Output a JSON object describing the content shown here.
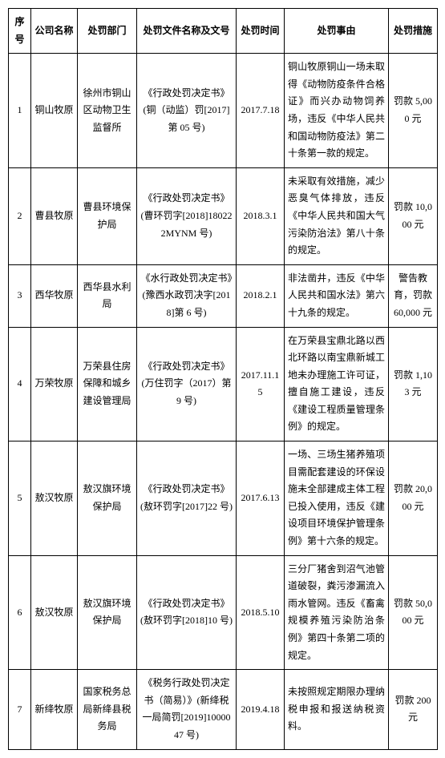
{
  "headers": {
    "seq": "序号",
    "company": "公司名称",
    "dept": "处罚部门",
    "doc": "处罚文件名称及文号",
    "time": "处罚时间",
    "cause": "处罚事由",
    "measure": "处罚措施"
  },
  "rows": [
    {
      "seq": "1",
      "company": "铜山牧原",
      "dept": "徐州市铜山区动物卫生监督所",
      "doc": "《行政处罚决定书》(铜（动监）罚[2017]第 05 号)",
      "time": "2017.7.18",
      "cause": "铜山牧原铜山一场未取得《动物防疫条件合格证》而兴办动物饲养场，违反《中华人民共和国动物防疫法》第二十条第一款的规定。",
      "measure": "罚款 5,000 元"
    },
    {
      "seq": "2",
      "company": "曹县牧原",
      "dept": "曹县环境保护局",
      "doc": "《行政处罚决定书》(曹环罚字[2018]180222MYNM 号)",
      "time": "2018.3.1",
      "cause": "未采取有效措施，减少恶臭气体排放，违反《中华人民共和国大气污染防治法》第八十条的规定。",
      "measure": "罚款 10,000 元"
    },
    {
      "seq": "3",
      "company": "西华牧原",
      "dept": "西华县水利局",
      "doc": "《水行政处罚决定书》(豫西水政罚决字[2018]第 6 号)",
      "time": "2018.2.1",
      "cause": "非法凿井，违反《中华人民共和国水法》第六十九条的规定。",
      "measure": "警告教育，罚款 60,000 元"
    },
    {
      "seq": "4",
      "company": "万荣牧原",
      "dept": "万荣县住房保障和城乡建设管理局",
      "doc": "《行政处罚决定书》(万住罚字（2017）第 9 号)",
      "time": "2017.11.15",
      "cause": "在万荣县宝鼎北路以西北环路以南宝鼎新城工地未办理施工许可证，擅自施工建设，违反《建设工程质量管理条例》的规定。",
      "measure": "罚款 1,103 元"
    },
    {
      "seq": "5",
      "company": "敖汉牧原",
      "dept": "敖汉旗环境保护局",
      "doc": "《行政处罚决定书》(敖环罚字[2017]22 号)",
      "time": "2017.6.13",
      "cause": "一场、三场生猪养殖项目需配套建设的环保设施未全部建成主体工程已投入使用，违反《建设项目环境保护管理条例》第十六条的规定。",
      "measure": "罚款 20,000 元"
    },
    {
      "seq": "6",
      "company": "敖汉牧原",
      "dept": "敖汉旗环境保护局",
      "doc": "《行政处罚决定书》(敖环罚字[2018]10 号)",
      "time": "2018.5.10",
      "cause": "三分厂猪舍到沼气池管道破裂，粪污渗漏流入雨水管网。违反《畜禽规模养殖污染防治条例》第四十条第二项的规定。",
      "measure": "罚款 50,000 元"
    },
    {
      "seq": "7",
      "company": "新绛牧原",
      "dept": "国家税务总局新绛县税务局",
      "doc": "《税务行政处罚决定书（简易）》(新绛税一局简罚[2019]1000047 号)",
      "time": "2019.4.18",
      "cause": "未按照规定期限办理纳税申报和报送纳税资料。",
      "measure": "罚款 200 元"
    }
  ]
}
